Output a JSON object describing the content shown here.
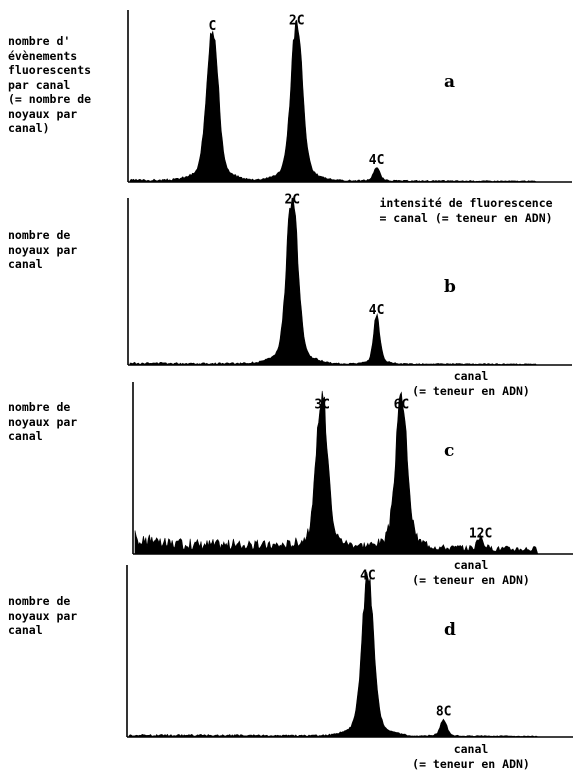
{
  "chart_data": [
    {
      "type": "area",
      "panel": "a",
      "ylabel": "nombre d'\névènements\nfluorescents\npar canal\n(= nombre de\nnoyaux par\ncanal)",
      "xlabel": "intensité de fluorescence\n= canal (= teneur en ADN)",
      "peaks": [
        {
          "label": "C",
          "position": 0.19,
          "height": 0.85
        },
        {
          "label": "2C",
          "position": 0.38,
          "height": 0.88
        },
        {
          "label": "4C",
          "position": 0.56,
          "height": 0.07
        }
      ]
    },
    {
      "type": "area",
      "panel": "b",
      "ylabel": "nombre de\nnoyaux par\ncanal",
      "xlabel": "canal\n(= teneur en ADN)",
      "peaks": [
        {
          "label": "2C",
          "position": 0.37,
          "height": 0.93
        },
        {
          "label": "4C",
          "position": 0.56,
          "height": 0.27
        }
      ]
    },
    {
      "type": "area",
      "panel": "c",
      "ylabel": "nombre de\nnoyaux par\ncanal",
      "xlabel": "canal\n(= teneur en ADN)",
      "peaks": [
        {
          "label": "3C",
          "position": 0.43,
          "height": 0.81
        },
        {
          "label": "6C",
          "position": 0.61,
          "height": 0.81
        },
        {
          "label": "12C",
          "position": 0.79,
          "height": 0.06
        }
      ]
    },
    {
      "type": "area",
      "panel": "d",
      "ylabel": "nombre de\nnoyaux par\ncanal",
      "xlabel": "canal\n(= teneur en ADN)",
      "peaks": [
        {
          "label": "4C",
          "position": 0.54,
          "height": 0.88
        },
        {
          "label": "8C",
          "position": 0.71,
          "height": 0.09
        }
      ]
    }
  ]
}
